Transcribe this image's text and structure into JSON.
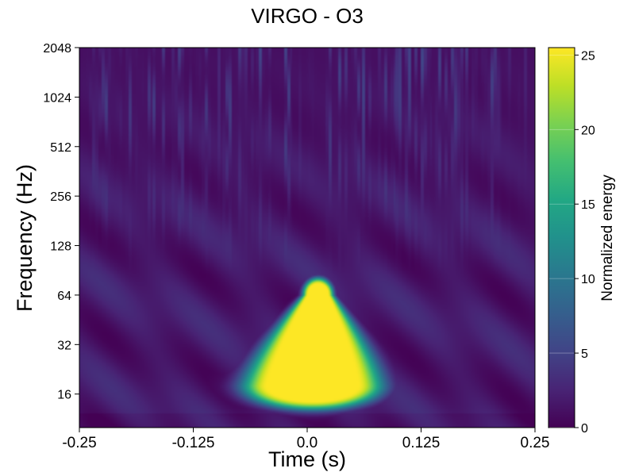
{
  "chart_data": {
    "type": "heatmap",
    "title": "VIRGO - O3",
    "xlabel": "Time (s)",
    "ylabel": "Frequency (Hz)",
    "xlim": [
      -0.25,
      0.25
    ],
    "ylim": [
      10,
      2048
    ],
    "yscale": "log2",
    "x_ticks": [
      -0.25,
      -0.125,
      0.0,
      0.125,
      0.25
    ],
    "x_tick_labels": [
      "-0.25",
      "-0.125",
      "0.0",
      "0.125",
      "0.25"
    ],
    "y_ticks": [
      16,
      32,
      64,
      128,
      256,
      512,
      1024,
      2048
    ],
    "y_tick_labels": [
      "16",
      "32",
      "64",
      "128",
      "256",
      "512",
      "1024",
      "2048"
    ],
    "colormap": "viridis",
    "colorbar": {
      "label": "Normalized energy",
      "range": [
        0,
        25.5
      ],
      "ticks": [
        0,
        5,
        10,
        15,
        20,
        25
      ],
      "tick_labels": [
        "0",
        "5",
        "10",
        "15",
        "20",
        "25"
      ]
    },
    "features": [
      {
        "name": "saturated chirp blob",
        "t_range": [
          -0.045,
          0.065
        ],
        "f_range": [
          18,
          64
        ],
        "energy": 25.5
      },
      {
        "name": "glow around blob",
        "t_range": [
          -0.075,
          0.11
        ],
        "f_range": [
          15,
          80
        ],
        "energy": 6
      },
      {
        "name": "low-frequency band",
        "t_range": [
          -0.25,
          0.25
        ],
        "f_range": [
          10,
          45
        ],
        "energy": 2.5
      },
      {
        "name": "high-frequency streaks",
        "t_range": [
          -0.25,
          0.25
        ],
        "f_range": [
          100,
          2048
        ],
        "energy": 3
      }
    ]
  }
}
